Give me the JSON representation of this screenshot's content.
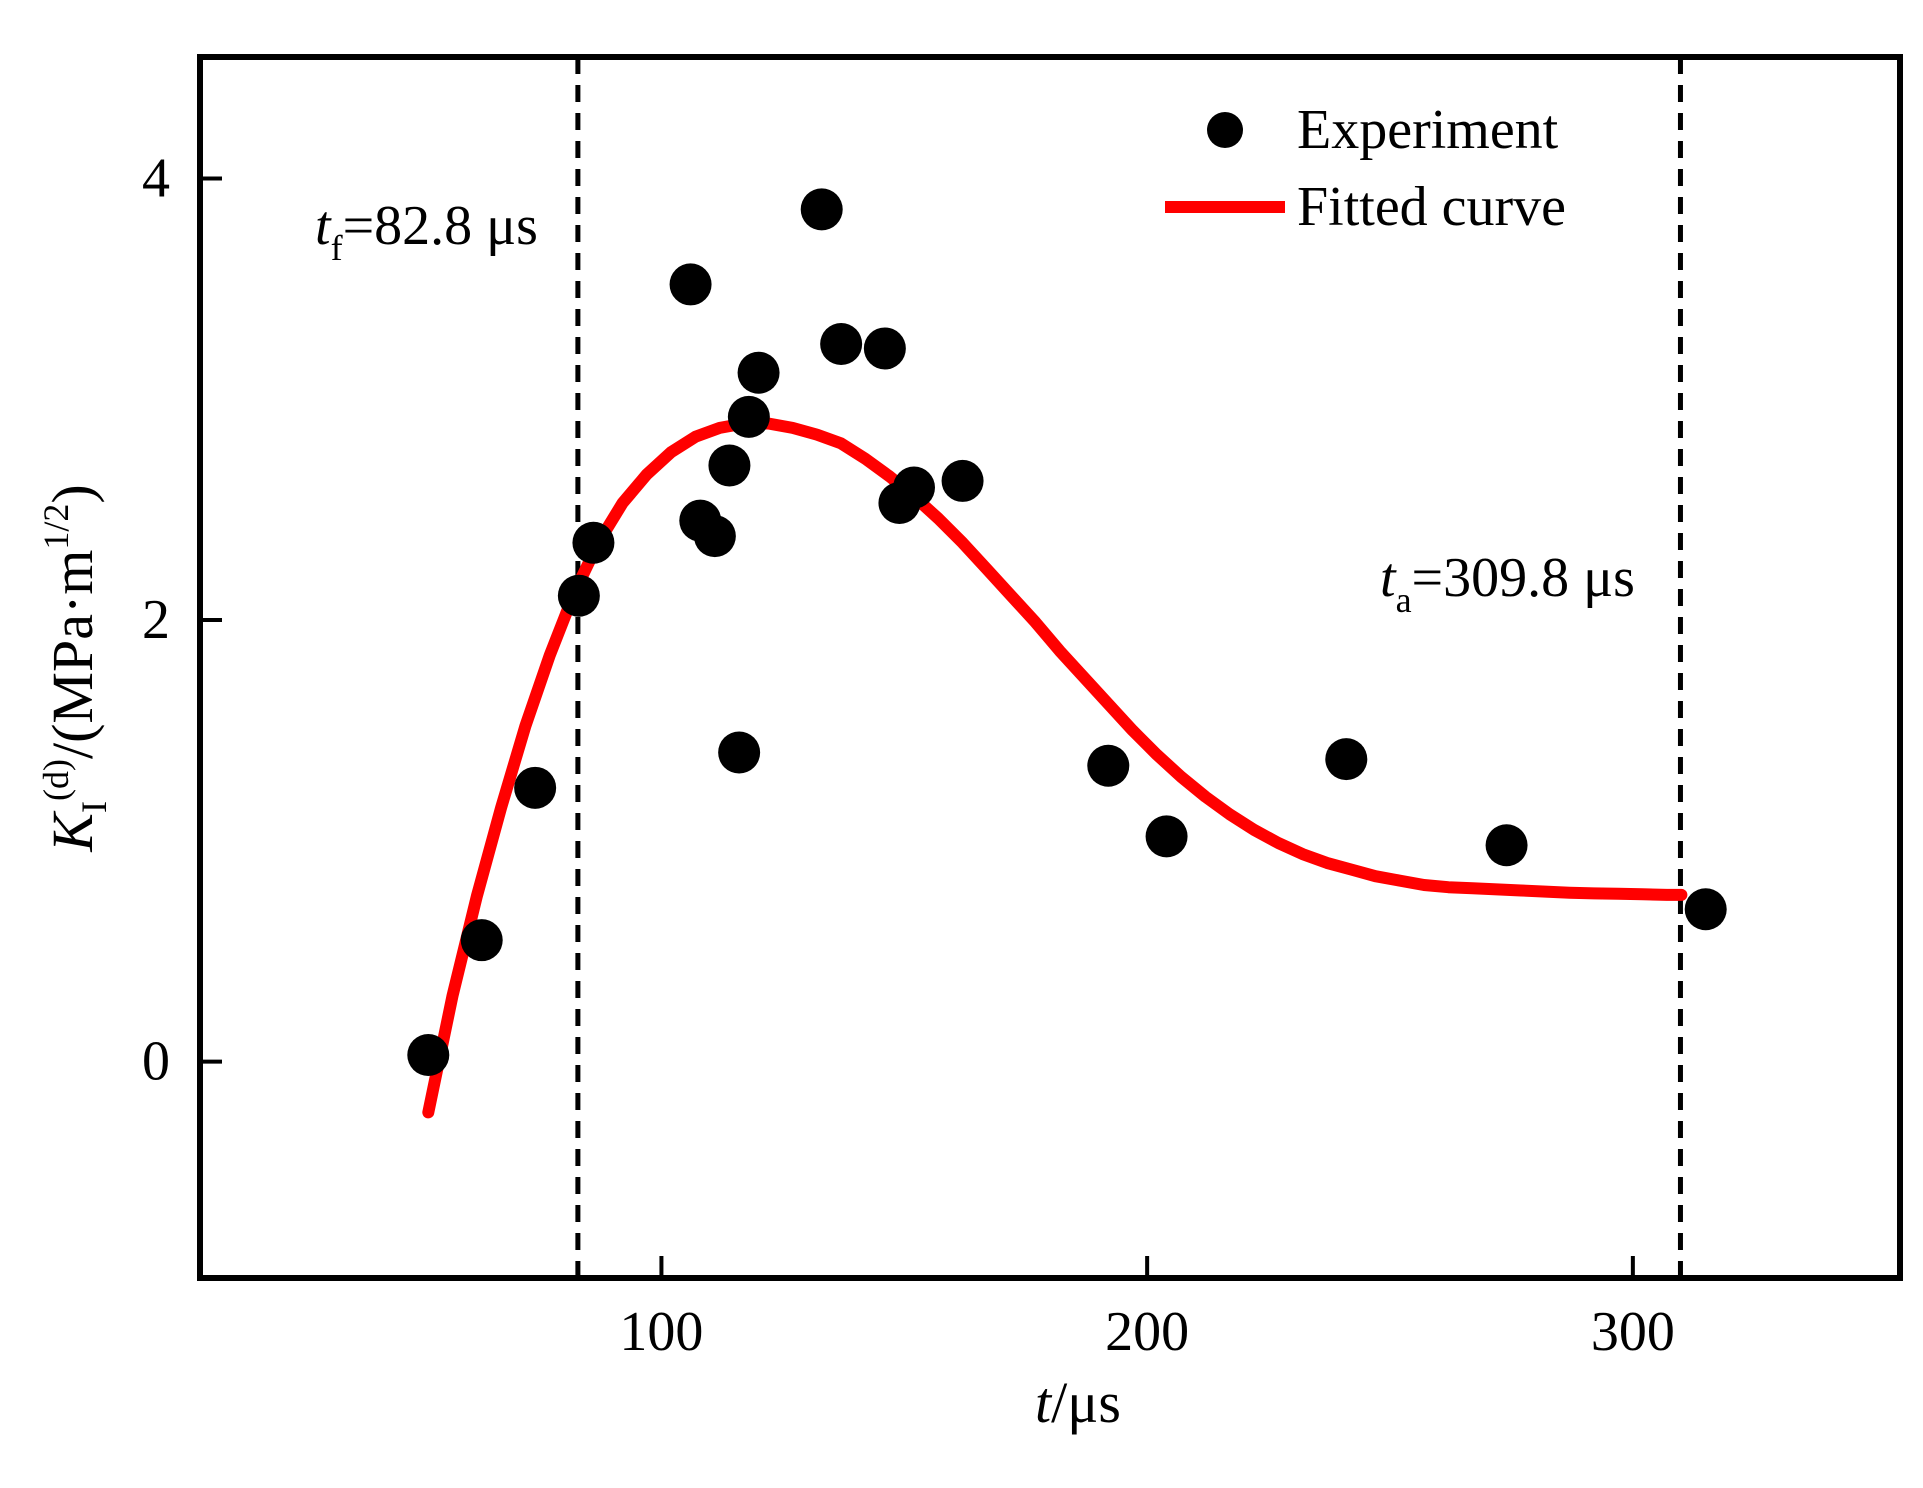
{
  "chart_data": {
    "type": "scatter",
    "xlabel": {
      "var": "t",
      "unit": "/μs"
    },
    "ylabel": {
      "var": "K",
      "sub": "I",
      "sup": "(d)",
      "unit": "/(MPa·m",
      "unit_sup": "1/2",
      "close": ")"
    },
    "xlim": [
      5,
      355
    ],
    "ylim": [
      -0.98,
      4.55
    ],
    "x_ticks": [
      100,
      200,
      300
    ],
    "y_ticks": [
      0,
      2,
      4
    ],
    "grid": false,
    "legend_position": "top-right",
    "series": [
      {
        "name": "Experiment",
        "kind": "points",
        "color": "#000000",
        "points": [
          [
            52,
            0.03
          ],
          [
            63,
            0.55
          ],
          [
            74,
            1.24
          ],
          [
            83,
            2.11
          ],
          [
            86,
            2.35
          ],
          [
            106,
            3.52
          ],
          [
            108,
            2.45
          ],
          [
            111,
            2.38
          ],
          [
            114,
            2.7
          ],
          [
            116,
            1.4
          ],
          [
            118,
            2.92
          ],
          [
            120,
            3.12
          ],
          [
            133,
            3.86
          ],
          [
            137,
            3.25
          ],
          [
            146,
            3.23
          ],
          [
            149,
            2.53
          ],
          [
            152,
            2.6
          ],
          [
            162,
            2.63
          ],
          [
            192,
            1.34
          ],
          [
            204,
            1.02
          ],
          [
            241,
            1.37
          ],
          [
            274,
            0.98
          ],
          [
            315,
            0.69
          ]
        ]
      },
      {
        "name": "Fitted curve",
        "kind": "line",
        "color": "#ff0000",
        "points": [
          [
            52,
            -0.23
          ],
          [
            57,
            0.3
          ],
          [
            62,
            0.75
          ],
          [
            67,
            1.15
          ],
          [
            72,
            1.52
          ],
          [
            77,
            1.84
          ],
          [
            82,
            2.12
          ],
          [
            87,
            2.35
          ],
          [
            92,
            2.53
          ],
          [
            97,
            2.66
          ],
          [
            102,
            2.76
          ],
          [
            107,
            2.83
          ],
          [
            112,
            2.87
          ],
          [
            117,
            2.89
          ],
          [
            122,
            2.89
          ],
          [
            127,
            2.87
          ],
          [
            132,
            2.84
          ],
          [
            137,
            2.8
          ],
          [
            142,
            2.73
          ],
          [
            147,
            2.65
          ],
          [
            152,
            2.56
          ],
          [
            157,
            2.46
          ],
          [
            162,
            2.35
          ],
          [
            167,
            2.23
          ],
          [
            172,
            2.11
          ],
          [
            177,
            1.99
          ],
          [
            182,
            1.86
          ],
          [
            187,
            1.74
          ],
          [
            192,
            1.62
          ],
          [
            197,
            1.5
          ],
          [
            202,
            1.39
          ],
          [
            207,
            1.29
          ],
          [
            212,
            1.2
          ],
          [
            217,
            1.12
          ],
          [
            222,
            1.05
          ],
          [
            227,
            0.99
          ],
          [
            232,
            0.94
          ],
          [
            237,
            0.9
          ],
          [
            242,
            0.87
          ],
          [
            247,
            0.84
          ],
          [
            252,
            0.82
          ],
          [
            257,
            0.8
          ],
          [
            262,
            0.79
          ],
          [
            267,
            0.785
          ],
          [
            272,
            0.78
          ],
          [
            277,
            0.775
          ],
          [
            282,
            0.77
          ],
          [
            287,
            0.765
          ],
          [
            292,
            0.762
          ],
          [
            297,
            0.76
          ],
          [
            302,
            0.758
          ],
          [
            307,
            0.755
          ],
          [
            310,
            0.755
          ]
        ]
      }
    ],
    "vlines": [
      82.8,
      309.8
    ],
    "annotations": [
      {
        "var": "t",
        "sub": "f",
        "text": "=82.8 μs"
      },
      {
        "var": "t",
        "sub": "a",
        "text": "=309.8 μs"
      }
    ]
  }
}
